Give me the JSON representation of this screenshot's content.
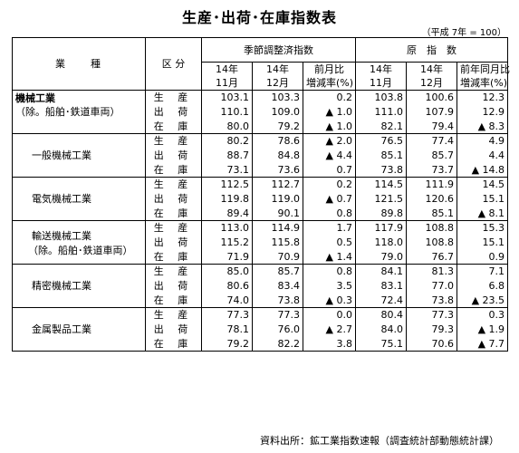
{
  "title": "生産･出荷･在庫指数表",
  "base_note": "（平成 7年 = 100）",
  "source_note": "資料出所：鉱工業指数速報（調査統計部動態統計課）",
  "headers": {
    "industry": "業　　種",
    "category": "区 分",
    "seasonal": "季節調整済指数",
    "original": "原　指　数",
    "y14a": "14年",
    "y14b": "14年",
    "y14c": "14年",
    "y14d": "14年",
    "m11a": "11月",
    "m12a": "12月",
    "m11b": "11月",
    "m12b": "12月",
    "mom": "前月比",
    "mom_rate": "増減率(%)",
    "yoy": "前年同月比",
    "yoy_rate": "増減率(%)"
  },
  "negative_marker": "▲",
  "groups": [
    {
      "name": "機械工業",
      "sub": "（除。船舶･鉄道車両）",
      "rows": [
        {
          "label": "生 産",
          "sa_nov": "103.1",
          "sa_dec": "103.3",
          "mom": "0.2",
          "orig_nov": "103.8",
          "orig_dec": "100.6",
          "yoy": "12.3"
        },
        {
          "label": "出 荷",
          "sa_nov": "110.1",
          "sa_dec": "109.0",
          "mom": "▲ 1.0",
          "orig_nov": "111.0",
          "orig_dec": "107.9",
          "yoy": "12.9"
        },
        {
          "label": "在 庫",
          "sa_nov": "80.0",
          "sa_dec": "79.2",
          "mom": "▲ 1.0",
          "orig_nov": "82.1",
          "orig_dec": "79.4",
          "yoy": "▲ 8.3"
        }
      ]
    },
    {
      "name": "一般機械工業",
      "sub": "",
      "rows": [
        {
          "label": "生 産",
          "sa_nov": "80.2",
          "sa_dec": "78.6",
          "mom": "▲ 2.0",
          "orig_nov": "76.5",
          "orig_dec": "77.4",
          "yoy": "4.9"
        },
        {
          "label": "出 荷",
          "sa_nov": "88.7",
          "sa_dec": "84.8",
          "mom": "▲ 4.4",
          "orig_nov": "85.1",
          "orig_dec": "85.7",
          "yoy": "4.4"
        },
        {
          "label": "在 庫",
          "sa_nov": "73.1",
          "sa_dec": "73.6",
          "mom": "0.7",
          "orig_nov": "73.8",
          "orig_dec": "73.7",
          "yoy": "▲ 14.8"
        }
      ]
    },
    {
      "name": "電気機械工業",
      "sub": "",
      "rows": [
        {
          "label": "生 産",
          "sa_nov": "112.5",
          "sa_dec": "112.7",
          "mom": "0.2",
          "orig_nov": "114.5",
          "orig_dec": "111.9",
          "yoy": "14.5"
        },
        {
          "label": "出 荷",
          "sa_nov": "119.8",
          "sa_dec": "119.0",
          "mom": "▲ 0.7",
          "orig_nov": "121.5",
          "orig_dec": "120.6",
          "yoy": "15.1"
        },
        {
          "label": "在 庫",
          "sa_nov": "89.4",
          "sa_dec": "90.1",
          "mom": "0.8",
          "orig_nov": "89.8",
          "orig_dec": "85.1",
          "yoy": "▲ 8.1"
        }
      ]
    },
    {
      "name": "輸送機械工業",
      "sub": "（除。船舶･鉄道車両）",
      "rows": [
        {
          "label": "生 産",
          "sa_nov": "113.0",
          "sa_dec": "114.9",
          "mom": "1.7",
          "orig_nov": "117.9",
          "orig_dec": "108.8",
          "yoy": "15.3"
        },
        {
          "label": "出 荷",
          "sa_nov": "115.2",
          "sa_dec": "115.8",
          "mom": "0.5",
          "orig_nov": "118.0",
          "orig_dec": "108.8",
          "yoy": "15.1"
        },
        {
          "label": "在 庫",
          "sa_nov": "71.9",
          "sa_dec": "70.9",
          "mom": "▲ 1.4",
          "orig_nov": "79.0",
          "orig_dec": "76.7",
          "yoy": "0.9"
        }
      ]
    },
    {
      "name": "精密機械工業",
      "sub": "",
      "rows": [
        {
          "label": "生 産",
          "sa_nov": "85.0",
          "sa_dec": "85.7",
          "mom": "0.8",
          "orig_nov": "84.1",
          "orig_dec": "81.3",
          "yoy": "7.1"
        },
        {
          "label": "出 荷",
          "sa_nov": "80.6",
          "sa_dec": "83.4",
          "mom": "3.5",
          "orig_nov": "83.1",
          "orig_dec": "77.0",
          "yoy": "6.8"
        },
        {
          "label": "在 庫",
          "sa_nov": "74.0",
          "sa_dec": "73.8",
          "mom": "▲ 0.3",
          "orig_nov": "72.4",
          "orig_dec": "73.8",
          "yoy": "▲ 23.5"
        }
      ]
    },
    {
      "name": "金属製品工業",
      "sub": "",
      "rows": [
        {
          "label": "生 産",
          "sa_nov": "77.3",
          "sa_dec": "77.3",
          "mom": "0.0",
          "orig_nov": "80.4",
          "orig_dec": "77.3",
          "yoy": "0.3"
        },
        {
          "label": "出 荷",
          "sa_nov": "78.1",
          "sa_dec": "76.0",
          "mom": "▲ 2.7",
          "orig_nov": "84.0",
          "orig_dec": "79.3",
          "yoy": "▲ 1.9"
        },
        {
          "label": "在 庫",
          "sa_nov": "79.2",
          "sa_dec": "82.2",
          "mom": "3.8",
          "orig_nov": "75.1",
          "orig_dec": "70.6",
          "yoy": "▲ 7.7"
        }
      ]
    }
  ]
}
